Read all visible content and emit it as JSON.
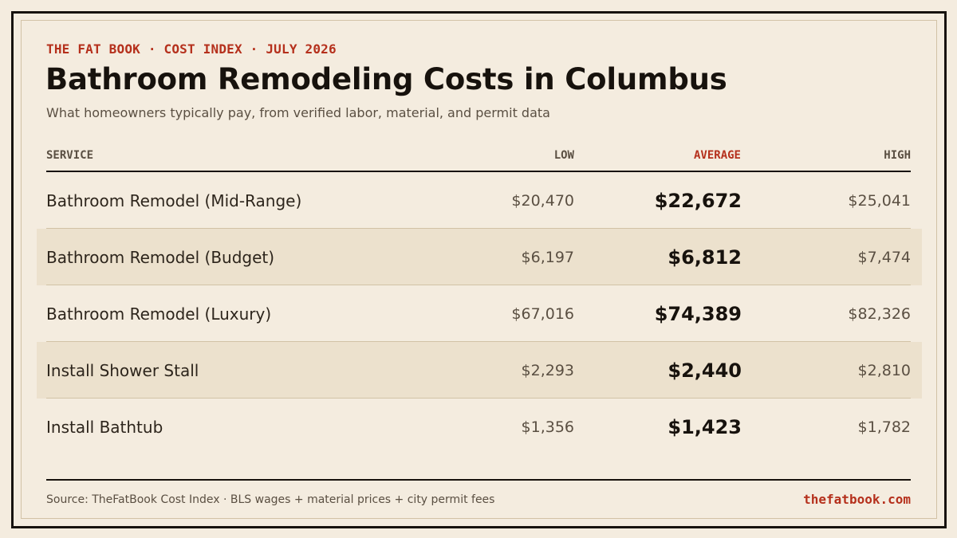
{
  "header": {
    "kicker": "THE FAT BOOK · COST INDEX · JULY 2026",
    "title": "Bathroom Remodeling Costs in Columbus",
    "subtitle": "What homeowners typically pay, from verified labor, material, and permit data"
  },
  "table": {
    "columns": {
      "service": "SERVICE",
      "low": "LOW",
      "average": "AVERAGE",
      "high": "HIGH"
    },
    "rows": [
      {
        "service": "Bathroom Remodel (Mid-Range)",
        "low": "$20,470",
        "average": "$22,672",
        "high": "$25,041"
      },
      {
        "service": "Bathroom Remodel (Budget)",
        "low": "$6,197",
        "average": "$6,812",
        "high": "$7,474"
      },
      {
        "service": "Bathroom Remodel (Luxury)",
        "low": "$67,016",
        "average": "$74,389",
        "high": "$82,326"
      },
      {
        "service": "Install Shower Stall",
        "low": "$2,293",
        "average": "$2,440",
        "high": "$2,810"
      },
      {
        "service": "Install Bathtub",
        "low": "$1,356",
        "average": "$1,423",
        "high": "$1,782"
      }
    ]
  },
  "footer": {
    "source": "Source: TheFatBook Cost Index · BLS wages + material prices + city permit fees",
    "site": "thefatbook.com"
  },
  "colors": {
    "background": "#f4ecdf",
    "accent": "#b5301c",
    "ink": "#17120d",
    "row_shade": "#ece1cd"
  }
}
